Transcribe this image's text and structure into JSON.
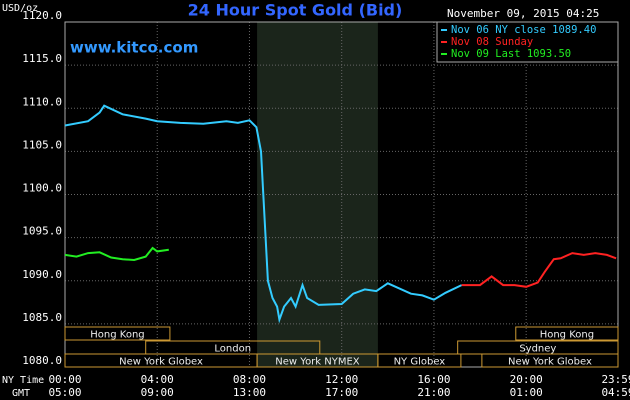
{
  "chart_data": {
    "type": "line",
    "title": "24 Hour Spot Gold (Bid)",
    "watermark": "www.kitco.com",
    "timestamp": "November 09, 2015 04:25",
    "y_label": "USD/oz",
    "ylim": [
      1080,
      1120
    ],
    "yticks": [
      {
        "value": 1080,
        "label": "1080.0"
      },
      {
        "value": 1085,
        "label": "1085.0"
      },
      {
        "value": 1090,
        "label": "1090.0"
      },
      {
        "value": 1095,
        "label": "1095.0"
      },
      {
        "value": 1100,
        "label": "1100.0"
      },
      {
        "value": 1105,
        "label": "1105.0"
      },
      {
        "value": 1110,
        "label": "1110.0"
      },
      {
        "value": 1115,
        "label": "1115.0"
      },
      {
        "value": 1120,
        "label": "1120.0"
      }
    ],
    "xlim": [
      0,
      23.983
    ],
    "xticks": [
      {
        "value": 0,
        "label": "00:00"
      },
      {
        "value": 4,
        "label": "04:00"
      },
      {
        "value": 8,
        "label": "08:00"
      },
      {
        "value": 12,
        "label": "12:00"
      },
      {
        "value": 16,
        "label": "16:00"
      },
      {
        "value": 20,
        "label": "20:00"
      },
      {
        "value": 23.983,
        "label": "23:59"
      }
    ],
    "x_row_label": "NY Time",
    "x2_row_label": "GMT",
    "x2tick_labels": [
      "05:00",
      "09:00",
      "13:00",
      "17:00",
      "21:00",
      "01:00",
      "04:59"
    ],
    "grid": true,
    "shade": [
      8.33,
      13.57
    ],
    "sessions": [
      {
        "label": "Hong Kong",
        "start": 0,
        "end": 4.55,
        "row": 0
      },
      {
        "label": "Hong Kong",
        "start": 19.55,
        "end": 23.983,
        "row": 0
      },
      {
        "label": "London",
        "start": 3.5,
        "end": 11.05,
        "row": 1
      },
      {
        "label": "Sydney",
        "start": 17.03,
        "end": 23.983,
        "row": 1
      },
      {
        "label": "New York Globex",
        "start": 0,
        "end": 8.33,
        "row": 2
      },
      {
        "label": "New York NYMEX",
        "start": 8.33,
        "end": 13.57,
        "row": 2
      },
      {
        "label": "NY Globex",
        "start": 13.57,
        "end": 17.17,
        "row": 2
      },
      {
        "label": "New York Globex",
        "start": 18.08,
        "end": 23.983,
        "row": 2
      }
    ],
    "series": [
      {
        "name": "Nov 06 NY close 1089.40",
        "color": "#33ccff",
        "x": [
          0,
          1,
          1.5,
          1.7,
          2.5,
          3.5,
          4,
          5,
          6,
          7,
          7.5,
          8,
          8.3,
          8.5,
          8.6,
          8.7,
          8.8,
          9,
          9.2,
          9.3,
          9.5,
          9.8,
          10,
          10.3,
          10.5,
          11,
          12,
          12.5,
          13,
          13.5,
          14,
          15,
          15.5,
          16,
          16.5,
          17.2
        ],
        "values": [
          1108,
          1108.5,
          1109.5,
          1110.3,
          1109.3,
          1108.8,
          1108.5,
          1108.3,
          1108.2,
          1108.5,
          1108.3,
          1108.6,
          1107.8,
          1105,
          1100,
          1095,
          1090,
          1088,
          1087,
          1085.5,
          1087,
          1088,
          1087,
          1089.5,
          1088,
          1087.2,
          1087.3,
          1088.5,
          1089,
          1088.8,
          1089.7,
          1088.5,
          1088.3,
          1087.8,
          1088.6,
          1089.5
        ]
      },
      {
        "name": "Nov 08 Sunday",
        "color": "#ff2222",
        "x": [
          17.2,
          18,
          18.5,
          19,
          19.5,
          20,
          20.5,
          20.8,
          21.2,
          21.5,
          22,
          22.5,
          23,
          23.5,
          23.9
        ],
        "values": [
          1089.5,
          1089.5,
          1090.5,
          1089.5,
          1089.5,
          1089.3,
          1089.8,
          1091,
          1092.5,
          1092.6,
          1093.2,
          1093,
          1093.2,
          1093,
          1092.6
        ]
      },
      {
        "name": "Nov 09 Last 1093.50",
        "color": "#22ee22",
        "x": [
          0,
          0.5,
          1,
          1.5,
          2,
          2.5,
          3,
          3.5,
          3.8,
          4,
          4.5
        ],
        "values": [
          1093,
          1092.8,
          1093.2,
          1093.3,
          1092.7,
          1092.5,
          1092.4,
          1092.8,
          1093.8,
          1093.4,
          1093.6
        ]
      }
    ]
  }
}
